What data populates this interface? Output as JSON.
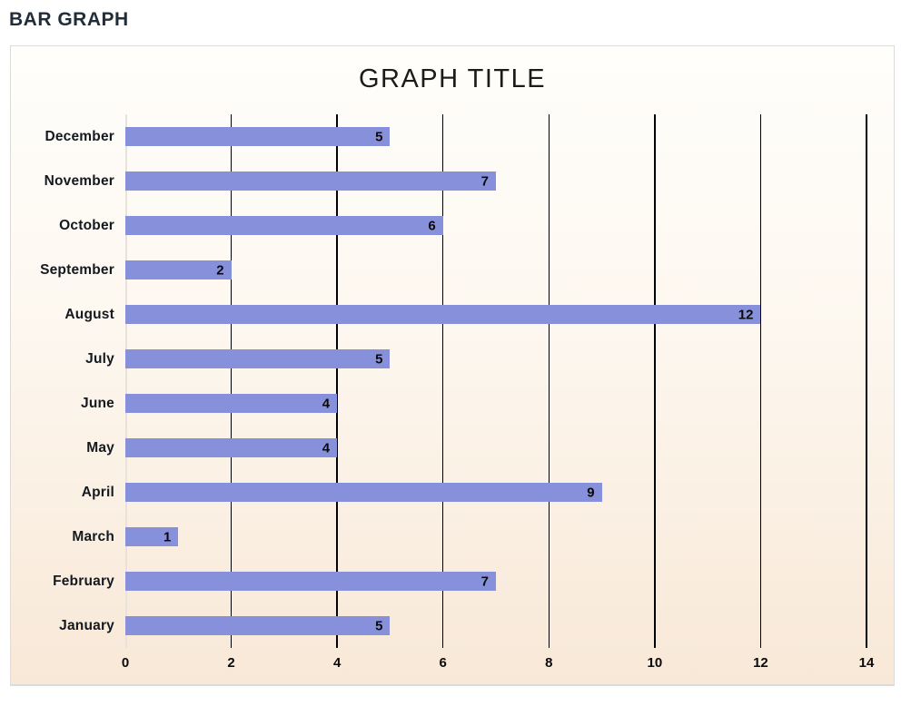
{
  "page": {
    "header": "BAR GRAPH"
  },
  "chart_data": {
    "type": "bar",
    "orientation": "horizontal",
    "title": "GRAPH TITLE",
    "categories": [
      "December",
      "November",
      "October",
      "September",
      "August",
      "July",
      "June",
      "May",
      "April",
      "March",
      "February",
      "January"
    ],
    "values": [
      5,
      7,
      6,
      2,
      12,
      5,
      4,
      4,
      9,
      1,
      7,
      5
    ],
    "x_ticks": [
      0,
      2,
      4,
      6,
      8,
      10,
      12,
      14
    ],
    "xlim": [
      0,
      14
    ],
    "value_labels": "inside-bar-end",
    "grid": "vertical",
    "legend": "none",
    "colors": {
      "bar_fill": "#8790da",
      "gridline": "#000000",
      "panel_background_top": "#fffefb",
      "panel_background_bottom": "#f8e8d7",
      "panel_border": "#dcdcdc",
      "header_text": "#222d3a",
      "label_text": "#14191f"
    }
  }
}
